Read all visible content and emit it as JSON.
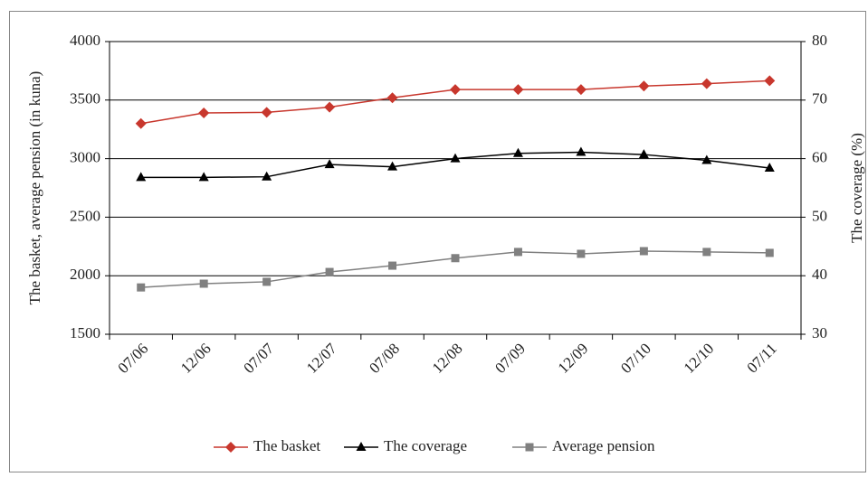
{
  "chart_data": {
    "type": "line",
    "categories": [
      "07/06",
      "12/06",
      "07/07",
      "12/07",
      "07/08",
      "12/08",
      "07/09",
      "12/09",
      "07/10",
      "12/10",
      "07/11"
    ],
    "y_label": "The basket, average pension (in kuna)",
    "y2_label": "The coverage (%)",
    "ylim": [
      1500,
      4000
    ],
    "yticks": [
      1500,
      2000,
      2500,
      3000,
      3500,
      4000
    ],
    "y2lim": [
      30,
      80
    ],
    "y2ticks": [
      30,
      40,
      50,
      60,
      70,
      80
    ],
    "grid": true,
    "legend": "bottom",
    "series": [
      {
        "name": "The basket",
        "color": "#c8372d",
        "marker": "diamond",
        "values": [
          3300,
          3390,
          3395,
          3440,
          3520,
          3590,
          3590,
          3590,
          3620,
          3640,
          3665
        ]
      },
      {
        "name": "The coverage",
        "color": "#000000",
        "marker": "triangle",
        "axis": "y2",
        "values": [
          56.8,
          56.8,
          56.9,
          59,
          58.6,
          60,
          60.9,
          61.1,
          60.7,
          59.7,
          58.4
        ]
      },
      {
        "name": "Average pension",
        "color": "#808080",
        "marker": "square",
        "values": [
          1900,
          1932,
          1948,
          2032,
          2086,
          2150,
          2203,
          2187,
          2210,
          2203,
          2195
        ]
      }
    ]
  }
}
